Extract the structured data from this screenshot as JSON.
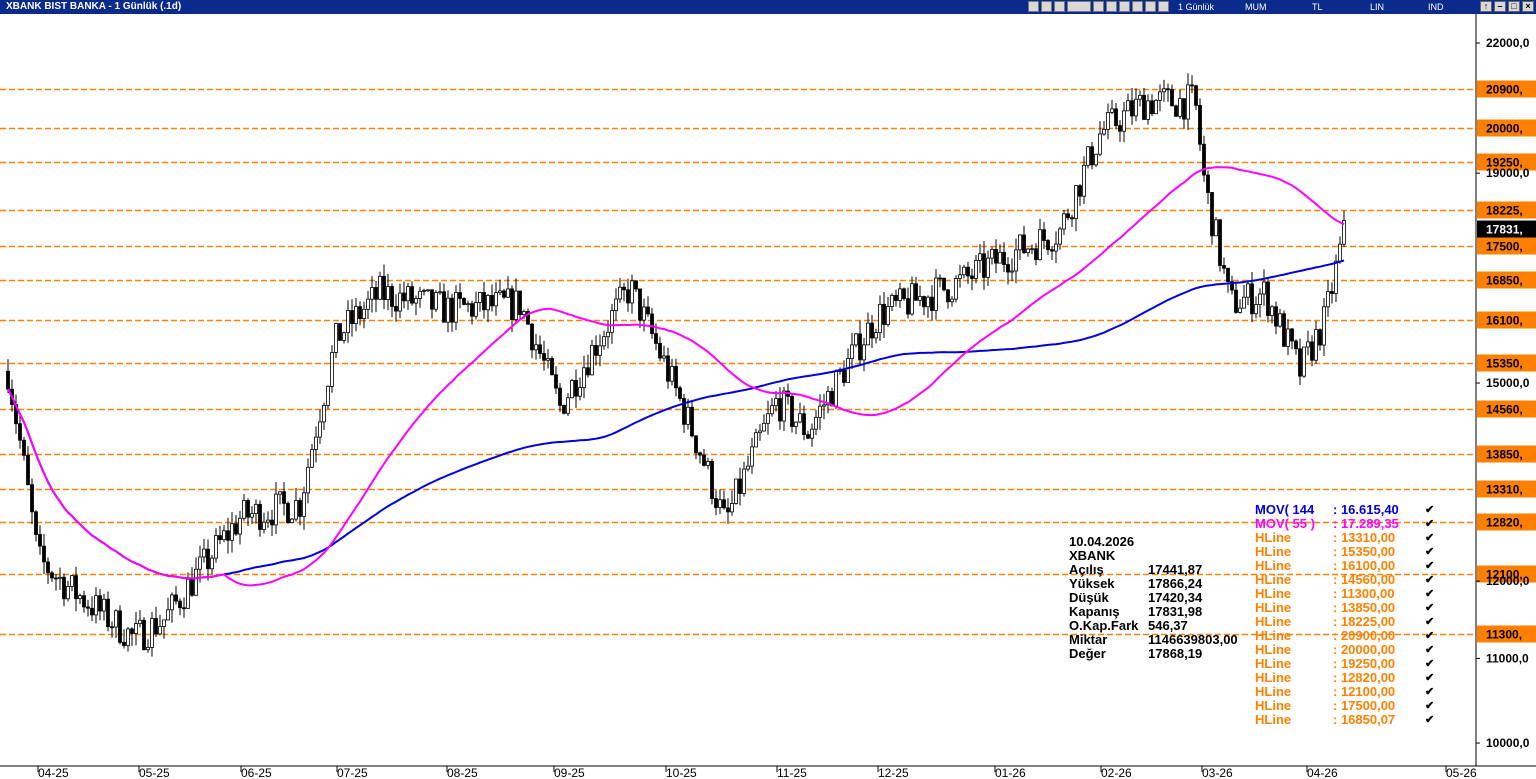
{
  "window": {
    "title": "XBANK BIST BANKA - 1 Günlük (.1d)",
    "options": [
      "1 Günlük",
      "MUM",
      "TL",
      "LIN",
      "IND"
    ],
    "toolbar_icons": [
      "layout-icon",
      "pen-icon",
      "save-icon",
      "chart-type-icon",
      "zoom-icon",
      "sync-icon",
      "hline-icon",
      "indicator-icon",
      "draw-icon",
      "settings-icon"
    ],
    "window_buttons": [
      "↑",
      "–",
      "□",
      "×"
    ]
  },
  "chart_data": {
    "type": "candlestick",
    "y_scale": "log",
    "y_range": [
      9800,
      23000
    ],
    "y_ticks": [
      "22000,0",
      "19000,0",
      "15000,0",
      "12000,0",
      "11000,0",
      "10000,0"
    ],
    "x_ticks": [
      "04-25",
      "05-25",
      "06-25",
      "07-25",
      "08-25",
      "09-25",
      "10-25",
      "11-25",
      "12-25",
      "01-26",
      "02-26",
      "03-26",
      "04-26",
      "05-26"
    ],
    "last_price_label": "17831,",
    "hlines": [
      {
        "label": "20900,",
        "value": 20900
      },
      {
        "label": "20000,",
        "value": 20000
      },
      {
        "label": "19250,",
        "value": 19250
      },
      {
        "label": "18225,",
        "value": 18225
      },
      {
        "label": "17500,",
        "value": 17500
      },
      {
        "label": "16850,",
        "value": 16850
      },
      {
        "label": "16100,",
        "value": 16100
      },
      {
        "label": "15350,",
        "value": 15350
      },
      {
        "label": "14560,",
        "value": 14560
      },
      {
        "label": "13850,",
        "value": 13850
      },
      {
        "label": "13310,",
        "value": 13310
      },
      {
        "label": "12820,",
        "value": 12820
      },
      {
        "label": "12100,",
        "value": 12100
      },
      {
        "label": "11300,",
        "value": 11300
      }
    ],
    "monthly_close": [
      14900,
      11500,
      12900,
      16300,
      16600,
      14700,
      13300,
      15400,
      16800,
      17100,
      19800,
      16400,
      17830
    ],
    "ma55": {
      "name": "MOV( 55 )",
      "value": "17.289,35"
    },
    "ma144": {
      "name": "MOV( 144 )",
      "value": "16.615,40"
    },
    "colors": {
      "hline": "#ff8000",
      "ma55": "#ff00ff",
      "ma144": "#0000dd",
      "candle": "#000000"
    }
  },
  "info_box": {
    "date": "10.04.2026",
    "symbol": "XBANK",
    "rows": [
      {
        "k": "Açılış",
        "v": "17441,87"
      },
      {
        "k": "Yüksek",
        "v": "17866,24"
      },
      {
        "k": "Düşük",
        "v": "17420,34"
      },
      {
        "k": "Kapanış",
        "v": "17831,98"
      },
      {
        "k": "O.Kap.Fark",
        "v": "546,37"
      },
      {
        "k": "Miktar",
        "v": "1146639803,00"
      },
      {
        "k": "Değer",
        "v": "17868,19"
      }
    ]
  },
  "legend": [
    {
      "name": "MOV( 144",
      "val": ": 16.615,40",
      "color": "#0000dd"
    },
    {
      "name": "MOV( 55 )",
      "val": ": 17.289,35",
      "color": "#ff00ff"
    },
    {
      "name": "HLine",
      "val": ": 13310,00",
      "color": "#ff8000"
    },
    {
      "name": "HLine",
      "val": ": 15350,00",
      "color": "#ff8000"
    },
    {
      "name": "HLine",
      "val": ": 16100,00",
      "color": "#ff8000"
    },
    {
      "name": "HLine",
      "val": ": 14560,00",
      "color": "#ff8000"
    },
    {
      "name": "HLine",
      "val": ": 11300,00",
      "color": "#ff8000"
    },
    {
      "name": "HLine",
      "val": ": 13850,00",
      "color": "#ff8000"
    },
    {
      "name": "HLine",
      "val": ": 18225,00",
      "color": "#ff8000"
    },
    {
      "name": "HLine",
      "val": ": 20900,00",
      "color": "#ff8000"
    },
    {
      "name": "HLine",
      "val": ": 20000,00",
      "color": "#ff8000"
    },
    {
      "name": "HLine",
      "val": ": 19250,00",
      "color": "#ff8000"
    },
    {
      "name": "HLine",
      "val": ": 12820,00",
      "color": "#ff8000"
    },
    {
      "name": "HLine",
      "val": ": 12100,00",
      "color": "#ff8000"
    },
    {
      "name": "HLine",
      "val": ": 17500,00",
      "color": "#ff8000"
    },
    {
      "name": "HLine",
      "val": ": 16850,07",
      "color": "#ff8000"
    }
  ]
}
